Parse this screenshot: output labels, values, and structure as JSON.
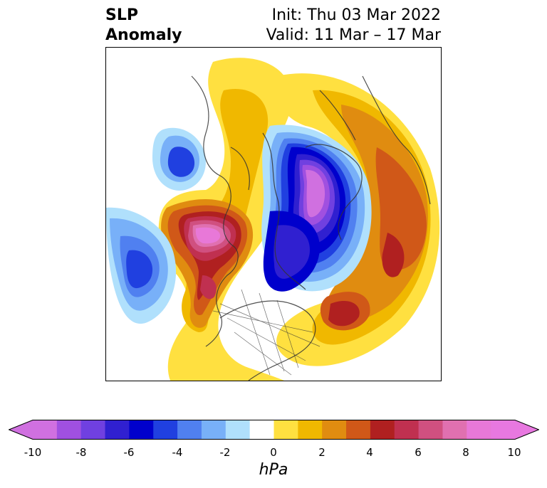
{
  "title": {
    "left_line1": "SLP",
    "left_line2": "Anomaly",
    "right_line1": "Init: Thu 03 Mar 2022",
    "right_line2": "Valid: 11 Mar – 17 Mar"
  },
  "colorbar": {
    "units": "hPa",
    "ticks": [
      "-10",
      "-8",
      "-6",
      "-4",
      "-2",
      "0",
      "2",
      "4",
      "6",
      "8",
      "10"
    ],
    "extend": "both",
    "colors": {
      "under": "#d070e0",
      "levels": [
        "#d070e0",
        "#a050e0",
        "#7040e0",
        "#3020d0",
        "#0000cc",
        "#2040e0",
        "#5080f0",
        "#78b0f8",
        "#b0e0fc",
        "#ffffff",
        "#ffe040",
        "#f0b800",
        "#e08c10",
        "#d05818",
        "#b02020",
        "#c03050",
        "#d05080",
        "#e070b0",
        "#e878d8",
        "#e878e0"
      ],
      "over": "#e878e0"
    }
  },
  "map": {
    "projection": "north polar stereographic",
    "features": [
      "coastlines",
      "country borders",
      "US state borders"
    ]
  }
}
